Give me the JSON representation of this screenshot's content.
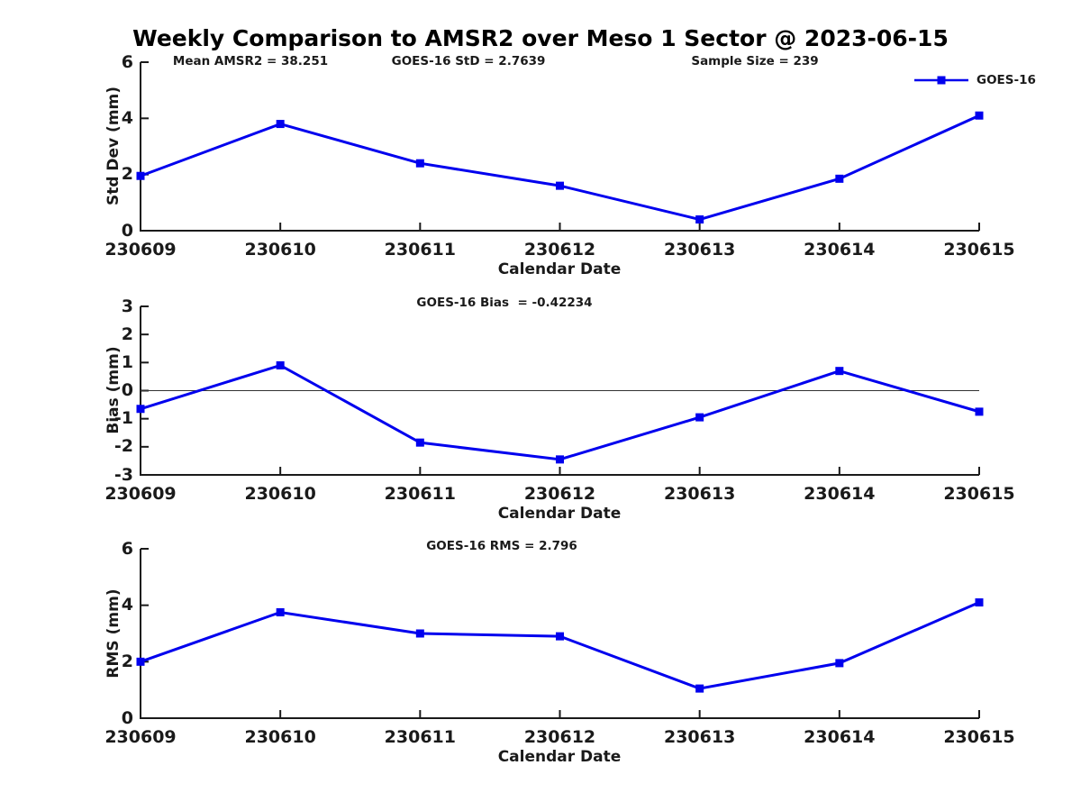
{
  "title": "Weekly Comparison to AMSR2 over Meso 1 Sector @ 2023-06-15",
  "xlabel": "Calendar Date",
  "legend": {
    "label": "GOES-16"
  },
  "colors": {
    "line": "#0000ee",
    "axis": "#1a1a1a",
    "text": "#1a1a1a",
    "zero_line": "#333333",
    "background": "#ffffff"
  },
  "stats": {
    "mean_amsr2": "38.251",
    "goes16_std": "2.7639",
    "sample_size": "239",
    "goes16_bias": "-0.42234",
    "goes16_rms": "2.796"
  },
  "chart_data": [
    {
      "type": "line",
      "name": "std-dev",
      "ylabel": "Std Dev (mm)",
      "xlabel": "Calendar Date",
      "ylim": [
        0,
        6
      ],
      "yticks": [
        0,
        2,
        4,
        6
      ],
      "grid": false,
      "legend_position": "top-right",
      "categories": [
        "230609",
        "230610",
        "230611",
        "230612",
        "230613",
        "230614",
        "230615"
      ],
      "series": [
        {
          "name": "GOES-16",
          "values": [
            1.95,
            3.8,
            2.4,
            1.6,
            0.4,
            1.85,
            4.1
          ]
        }
      ],
      "annotations": [
        "Mean AMSR2 = 38.251",
        "GOES-16 StD = 2.7639",
        "Sample Size = 239"
      ]
    },
    {
      "type": "line",
      "name": "bias",
      "ylabel": "Bias (mm)",
      "xlabel": "Calendar Date",
      "ylim": [
        -3,
        3
      ],
      "yticks": [
        3,
        2,
        1,
        0,
        -1,
        -2,
        -3
      ],
      "zero_line": true,
      "grid": false,
      "categories": [
        "230609",
        "230610",
        "230611",
        "230612",
        "230613",
        "230614",
        "230615"
      ],
      "series": [
        {
          "name": "GOES-16",
          "values": [
            -0.65,
            0.9,
            -1.85,
            -2.45,
            -0.95,
            0.7,
            -0.75
          ]
        }
      ],
      "annotations": [
        "GOES-16 Bias  = -0.42234"
      ]
    },
    {
      "type": "line",
      "name": "rms",
      "ylabel": "RMS (mm)",
      "xlabel": "Calendar Date",
      "ylim": [
        0,
        6
      ],
      "yticks": [
        0,
        2,
        4,
        6
      ],
      "grid": false,
      "categories": [
        "230609",
        "230610",
        "230611",
        "230612",
        "230613",
        "230614",
        "230615"
      ],
      "series": [
        {
          "name": "GOES-16",
          "values": [
            2.0,
            3.75,
            3.0,
            2.9,
            1.05,
            1.95,
            4.1
          ]
        }
      ],
      "annotations": [
        "GOES-16 RMS = 2.796"
      ]
    }
  ]
}
